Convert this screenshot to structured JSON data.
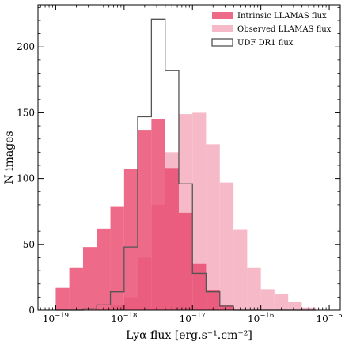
{
  "chart_data": {
    "type": "histogram",
    "xlabel": "Lyα flux [erg.s⁻¹.cm⁻²]",
    "ylabel": "N images",
    "x_scale": "log",
    "xlim": [
      5.5e-20,
      1.45e-15
    ],
    "ylim": [
      0,
      232
    ],
    "x_ticks": [
      {
        "value": 1e-19,
        "base": "10",
        "exp": "−19"
      },
      {
        "value": 1e-18,
        "base": "10",
        "exp": "−18"
      },
      {
        "value": 1e-17,
        "base": "10",
        "exp": "−17"
      },
      {
        "value": 1e-16,
        "base": "10",
        "exp": "−16"
      },
      {
        "value": 1e-15,
        "base": "10",
        "exp": "−15"
      }
    ],
    "y_ticks": [
      0,
      50,
      100,
      150,
      200
    ],
    "legend_position": "top-right",
    "series": [
      {
        "name": "Observed LLAMAS flux",
        "style": "filled",
        "color": "#f4a7ba",
        "bin_edges": [
          1e-19,
          1.58e-19,
          2.51e-19,
          3.98e-19,
          6.31e-19,
          1e-18,
          1.58e-18,
          2.51e-18,
          3.98e-18,
          6.31e-18,
          1e-17,
          1.58e-17,
          2.51e-17,
          3.98e-17,
          6.31e-17,
          1e-16,
          1.58e-16,
          2.51e-16,
          3.98e-16,
          6.31e-16
        ],
        "counts": [
          0,
          0,
          0,
          1,
          4,
          10,
          40,
          80,
          120,
          149,
          150,
          126,
          97,
          61,
          32,
          16,
          12,
          6,
          2
        ]
      },
      {
        "name": "Intrinsic LLAMAS flux",
        "style": "filled",
        "color": "#e8466b",
        "bin_edges": [
          1e-19,
          1.58e-19,
          2.51e-19,
          3.98e-19,
          6.31e-19,
          1e-18,
          1.58e-18,
          2.51e-18,
          3.98e-18,
          6.31e-18,
          1e-17,
          1.58e-17,
          2.51e-17,
          3.98e-17,
          6.31e-17,
          1e-16,
          1.58e-16,
          2.51e-16,
          3.98e-16,
          6.31e-16
        ],
        "counts": [
          17,
          32,
          48,
          62,
          79,
          107,
          137,
          145,
          108,
          74,
          35,
          15,
          4,
          0,
          0,
          0,
          0,
          0,
          0
        ]
      },
      {
        "name": "UDF DR1 flux",
        "style": "step",
        "color": "#555555",
        "bin_edges": [
          1e-19,
          1.58e-19,
          2.51e-19,
          3.98e-19,
          6.31e-19,
          1e-18,
          1.58e-18,
          2.51e-18,
          3.98e-18,
          6.31e-18,
          1e-17,
          1.58e-17,
          2.51e-17,
          3.98e-17,
          6.31e-17,
          1e-16,
          1.58e-16,
          2.51e-16,
          3.98e-16,
          6.31e-16
        ],
        "counts": [
          0,
          0,
          1,
          4,
          14,
          48,
          147,
          221,
          182,
          96,
          28,
          14,
          3,
          0,
          0,
          0,
          0,
          0,
          0
        ]
      }
    ],
    "legend": [
      {
        "label": "Intrinsic LLAMAS flux",
        "color": "#e8466b",
        "style": "filled"
      },
      {
        "label": "Observed LLAMAS flux",
        "color": "#f4a7ba",
        "style": "filled"
      },
      {
        "label": "UDF DR1 flux",
        "color": "#555555",
        "style": "step"
      }
    ]
  }
}
